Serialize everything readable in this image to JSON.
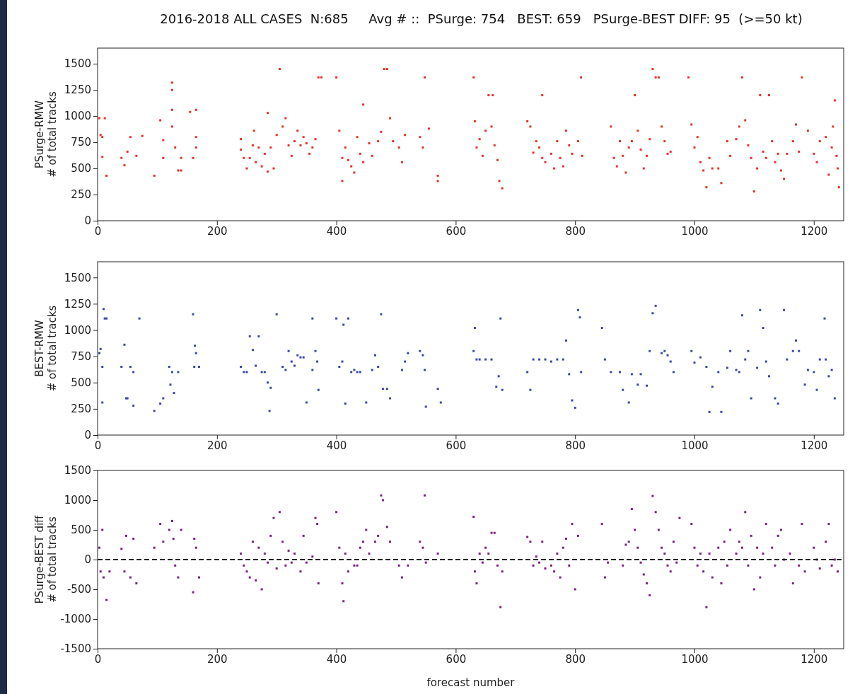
{
  "chart_data": [
    {
      "type": "scatter",
      "title": "2016-2018 ALL CASES  N:685     Avg # ::  PSurge: 754   BEST: 659   PSurge-BEST DIFF: 95  (>=50 kt)",
      "ylabel": "PSurge-RMW\n# of total tracks",
      "xlim": [
        0,
        1250
      ],
      "xticks": [
        0,
        200,
        400,
        600,
        800,
        1000,
        1200
      ],
      "ylim": [
        0,
        1650
      ],
      "yticks": [
        0,
        250,
        500,
        750,
        1000,
        1250,
        1500
      ],
      "marker": "square",
      "grid": false,
      "series": [
        {
          "color": "#e53228",
          "x": [
            3,
            5,
            8,
            12,
            15,
            8,
            40,
            45,
            50,
            55,
            65,
            75,
            95,
            105,
            110,
            110,
            125,
            125,
            125,
            125,
            130,
            135,
            140,
            140,
            155,
            160,
            165,
            165,
            165,
            240,
            240,
            245,
            250,
            255,
            260,
            262,
            265,
            270,
            275,
            280,
            285,
            285,
            290,
            295,
            300,
            305,
            310,
            315,
            320,
            325,
            330,
            335,
            340,
            345,
            350,
            355,
            360,
            365,
            370,
            375,
            400,
            405,
            410,
            410,
            415,
            420,
            425,
            430,
            435,
            440,
            445,
            445,
            455,
            460,
            470,
            475,
            480,
            485,
            490,
            495,
            505,
            510,
            515,
            540,
            545,
            548,
            555,
            570,
            570,
            630,
            632,
            635,
            640,
            645,
            650,
            655,
            660,
            665,
            670,
            673,
            678,
            662,
            720,
            725,
            730,
            735,
            740,
            745,
            745,
            750,
            760,
            765,
            770,
            775,
            780,
            785,
            790,
            795,
            805,
            810,
            812,
            860,
            865,
            870,
            875,
            880,
            885,
            890,
            895,
            900,
            905,
            910,
            915,
            920,
            925,
            930,
            935,
            940,
            945,
            950,
            955,
            960,
            990,
            995,
            1000,
            1005,
            1010,
            1015,
            1020,
            1025,
            1030,
            1040,
            1045,
            1055,
            1060,
            1070,
            1075,
            1080,
            1085,
            1090,
            1095,
            1100,
            1105,
            1110,
            1115,
            1120,
            1125,
            1130,
            1135,
            1140,
            1145,
            1150,
            1155,
            1165,
            1170,
            1175,
            1180,
            1190,
            1200,
            1205,
            1210,
            1220,
            1225,
            1230,
            1232,
            1235,
            1238,
            1240,
            1242
          ],
          "values": [
            980,
            820,
            800,
            980,
            430,
            610,
            600,
            530,
            660,
            800,
            620,
            810,
            430,
            960,
            770,
            600,
            1320,
            1250,
            1060,
            900,
            700,
            480,
            480,
            600,
            1040,
            600,
            1060,
            800,
            700,
            780,
            680,
            600,
            500,
            600,
            720,
            860,
            560,
            700,
            520,
            640,
            470,
            1030,
            700,
            500,
            820,
            1450,
            900,
            980,
            720,
            620,
            760,
            860,
            720,
            800,
            740,
            640,
            700,
            780,
            1370,
            1370,
            1370,
            860,
            600,
            380,
            700,
            580,
            520,
            460,
            800,
            640,
            1110,
            560,
            740,
            620,
            760,
            850,
            1450,
            1450,
            980,
            760,
            700,
            560,
            820,
            800,
            700,
            1370,
            880,
            430,
            380,
            1370,
            950,
            700,
            780,
            620,
            860,
            1200,
            900,
            720,
            580,
            380,
            310,
            1200,
            950,
            900,
            650,
            760,
            700,
            600,
            1200,
            560,
            640,
            500,
            760,
            600,
            520,
            860,
            720,
            640,
            760,
            1370,
            620,
            900,
            600,
            520,
            760,
            620,
            460,
            700,
            760,
            1200,
            860,
            680,
            500,
            620,
            780,
            1450,
            1370,
            1370,
            900,
            760,
            640,
            660,
            1370,
            920,
            700,
            800,
            560,
            480,
            320,
            600,
            500,
            500,
            360,
            760,
            620,
            780,
            900,
            1370,
            960,
            720,
            600,
            280,
            500,
            1200,
            660,
            600,
            1200,
            760,
            560,
            640,
            480,
            400,
            640,
            760,
            920,
            660,
            1370,
            860,
            640,
            560,
            760,
            800,
            440,
            700,
            900,
            1150,
            620,
            500,
            320
          ]
        }
      ]
    },
    {
      "type": "scatter",
      "ylabel": "BEST-RMW\n# of total tracks",
      "xlim": [
        0,
        1250
      ],
      "xticks": [
        0,
        200,
        400,
        600,
        800,
        1000,
        1200
      ],
      "ylim": [
        0,
        1650
      ],
      "yticks": [
        0,
        250,
        500,
        750,
        1000,
        1250,
        1500
      ],
      "marker": "square",
      "grid": false,
      "series": [
        {
          "color": "#3b48a8",
          "x": [
            3,
            5,
            8,
            10,
            12,
            15,
            8,
            40,
            45,
            48,
            50,
            55,
            60,
            60,
            70,
            95,
            105,
            110,
            120,
            122,
            125,
            128,
            135,
            160,
            162,
            163,
            165,
            170,
            240,
            245,
            250,
            255,
            260,
            265,
            270,
            275,
            280,
            285,
            290,
            288,
            300,
            310,
            315,
            320,
            325,
            330,
            335,
            340,
            345,
            350,
            360,
            360,
            365,
            368,
            370,
            400,
            405,
            410,
            412,
            415,
            420,
            425,
            430,
            435,
            440,
            450,
            460,
            465,
            470,
            475,
            478,
            485,
            490,
            510,
            515,
            520,
            540,
            545,
            548,
            550,
            570,
            575,
            630,
            632,
            635,
            640,
            650,
            660,
            668,
            672,
            675,
            678,
            720,
            725,
            730,
            740,
            750,
            760,
            770,
            780,
            785,
            790,
            795,
            800,
            805,
            808,
            810,
            845,
            850,
            860,
            875,
            880,
            890,
            895,
            905,
            910,
            920,
            925,
            930,
            935,
            945,
            950,
            955,
            960,
            965,
            995,
            1000,
            1010,
            1020,
            1025,
            1030,
            1040,
            1045,
            1055,
            1060,
            1070,
            1075,
            1080,
            1085,
            1090,
            1095,
            1105,
            1110,
            1115,
            1120,
            1125,
            1135,
            1140,
            1150,
            1155,
            1165,
            1170,
            1175,
            1185,
            1190,
            1200,
            1205,
            1210,
            1218,
            1220,
            1225,
            1230,
            1235
          ],
          "values": [
            780,
            820,
            310,
            1200,
            1110,
            1110,
            650,
            650,
            860,
            350,
            350,
            650,
            280,
            600,
            1110,
            230,
            300,
            350,
            650,
            480,
            600,
            400,
            600,
            1150,
            650,
            850,
            780,
            650,
            650,
            600,
            600,
            940,
            810,
            660,
            940,
            600,
            600,
            500,
            450,
            230,
            1150,
            650,
            620,
            800,
            700,
            660,
            760,
            740,
            740,
            310,
            1110,
            620,
            800,
            700,
            430,
            1110,
            650,
            700,
            1050,
            300,
            1110,
            600,
            620,
            600,
            600,
            310,
            620,
            760,
            650,
            1150,
            440,
            440,
            350,
            620,
            700,
            780,
            800,
            760,
            620,
            270,
            440,
            310,
            800,
            1020,
            720,
            720,
            720,
            720,
            460,
            560,
            1110,
            430,
            600,
            430,
            720,
            720,
            720,
            700,
            720,
            720,
            900,
            580,
            330,
            260,
            1190,
            1120,
            600,
            1020,
            720,
            600,
            600,
            430,
            310,
            580,
            480,
            580,
            470,
            800,
            1160,
            1230,
            780,
            800,
            760,
            700,
            600,
            800,
            690,
            740,
            650,
            220,
            460,
            600,
            220,
            640,
            800,
            620,
            600,
            1140,
            720,
            800,
            350,
            640,
            1190,
            1020,
            700,
            560,
            350,
            300,
            1190,
            720,
            800,
            900,
            800,
            480,
            620,
            600,
            430,
            720,
            1110,
            720,
            560,
            620,
            350
          ]
        }
      ]
    },
    {
      "type": "scatter",
      "ylabel": "PSurge-BEST diff\n# of total tracks",
      "xlabel": "forecast number",
      "xlim": [
        0,
        1250
      ],
      "xticks": [
        0,
        200,
        400,
        600,
        800,
        1000,
        1200
      ],
      "ylim": [
        -1500,
        1500
      ],
      "yticks": [
        -1500,
        -1000,
        -500,
        0,
        500,
        1000,
        1500
      ],
      "marker": "square",
      "grid": false,
      "ref_lines": [
        {
          "axis": "y",
          "value": 0,
          "color": "#222222",
          "line_style": "dashed"
        }
      ],
      "series": [
        {
          "color": "#7b2182",
          "x": [
            3,
            5,
            8,
            10,
            15,
            20,
            40,
            45,
            48,
            55,
            60,
            65,
            95,
            105,
            110,
            120,
            125,
            127,
            130,
            135,
            140,
            160,
            162,
            165,
            170,
            240,
            245,
            250,
            255,
            260,
            265,
            270,
            275,
            280,
            285,
            290,
            295,
            300,
            305,
            310,
            315,
            320,
            325,
            330,
            340,
            345,
            350,
            360,
            365,
            368,
            370,
            400,
            405,
            410,
            412,
            415,
            420,
            430,
            435,
            440,
            445,
            450,
            455,
            465,
            470,
            475,
            478,
            485,
            490,
            505,
            510,
            520,
            540,
            545,
            548,
            550,
            570,
            630,
            632,
            635,
            640,
            645,
            650,
            655,
            660,
            665,
            670,
            675,
            678,
            720,
            725,
            730,
            735,
            740,
            745,
            750,
            760,
            765,
            770,
            775,
            780,
            785,
            790,
            795,
            800,
            805,
            845,
            850,
            855,
            880,
            885,
            890,
            895,
            900,
            905,
            910,
            915,
            920,
            925,
            930,
            935,
            940,
            945,
            950,
            955,
            960,
            965,
            970,
            975,
            995,
            1000,
            1005,
            1010,
            1015,
            1020,
            1025,
            1030,
            1040,
            1045,
            1050,
            1055,
            1060,
            1070,
            1075,
            1080,
            1085,
            1090,
            1095,
            1100,
            1105,
            1110,
            1115,
            1120,
            1130,
            1135,
            1140,
            1145,
            1150,
            1160,
            1165,
            1175,
            1180,
            1185,
            1200,
            1205,
            1210,
            1220,
            1225,
            1230,
            1235,
            1240
          ],
          "values": [
            200,
            -200,
            500,
            -300,
            -680,
            -200,
            180,
            -200,
            400,
            -300,
            350,
            -400,
            200,
            600,
            300,
            500,
            650,
            350,
            -100,
            -300,
            500,
            -550,
            350,
            200,
            -300,
            100,
            -100,
            -200,
            -300,
            300,
            -350,
            200,
            -500,
            100,
            -50,
            400,
            700,
            -150,
            800,
            300,
            -100,
            150,
            -50,
            100,
            -200,
            400,
            -50,
            50,
            700,
            600,
            -400,
            800,
            200,
            -400,
            -700,
            100,
            -200,
            -100,
            -100,
            200,
            300,
            500,
            100,
            300,
            400,
            1080,
            1000,
            550,
            300,
            -100,
            -300,
            -100,
            300,
            200,
            1080,
            -50,
            100,
            720,
            -200,
            -400,
            100,
            -50,
            200,
            100,
            450,
            450,
            -100,
            -800,
            -200,
            380,
            300,
            -100,
            50,
            -50,
            300,
            -150,
            -100,
            -200,
            100,
            -300,
            200,
            350,
            -100,
            600,
            -500,
            400,
            600,
            -300,
            -50,
            -100,
            250,
            300,
            850,
            500,
            200,
            -50,
            -250,
            -400,
            -600,
            1070,
            800,
            500,
            200,
            100,
            -100,
            -200,
            300,
            -50,
            700,
            600,
            200,
            -100,
            100,
            -200,
            -800,
            100,
            -300,
            200,
            -400,
            300,
            -100,
            500,
            100,
            300,
            200,
            800,
            -100,
            400,
            -500,
            200,
            -300,
            100,
            600,
            200,
            -100,
            400,
            500,
            0,
            100,
            -400,
            -100,
            600,
            -200,
            200,
            0,
            -150,
            300,
            600,
            -100,
            0,
            -200
          ]
        }
      ]
    }
  ]
}
